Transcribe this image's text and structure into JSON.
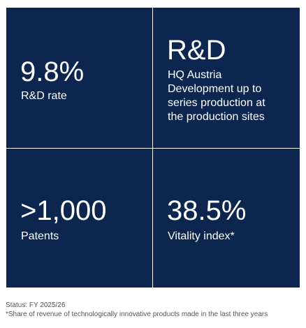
{
  "tiles": [
    {
      "value": "9.8%",
      "label": "R&D rate"
    },
    {
      "value": "R&D",
      "lines": [
        "HQ Austria",
        "Development up to",
        "series production at",
        "the production sites"
      ]
    },
    {
      "value": ">1,000",
      "label": "Patents"
    },
    {
      "value": "38.5%",
      "label": "Vitality index*"
    }
  ],
  "footer": {
    "status": "Status: FY 2025/26",
    "note": "*Share of revenue of technologically innovative products made in the last three years"
  }
}
